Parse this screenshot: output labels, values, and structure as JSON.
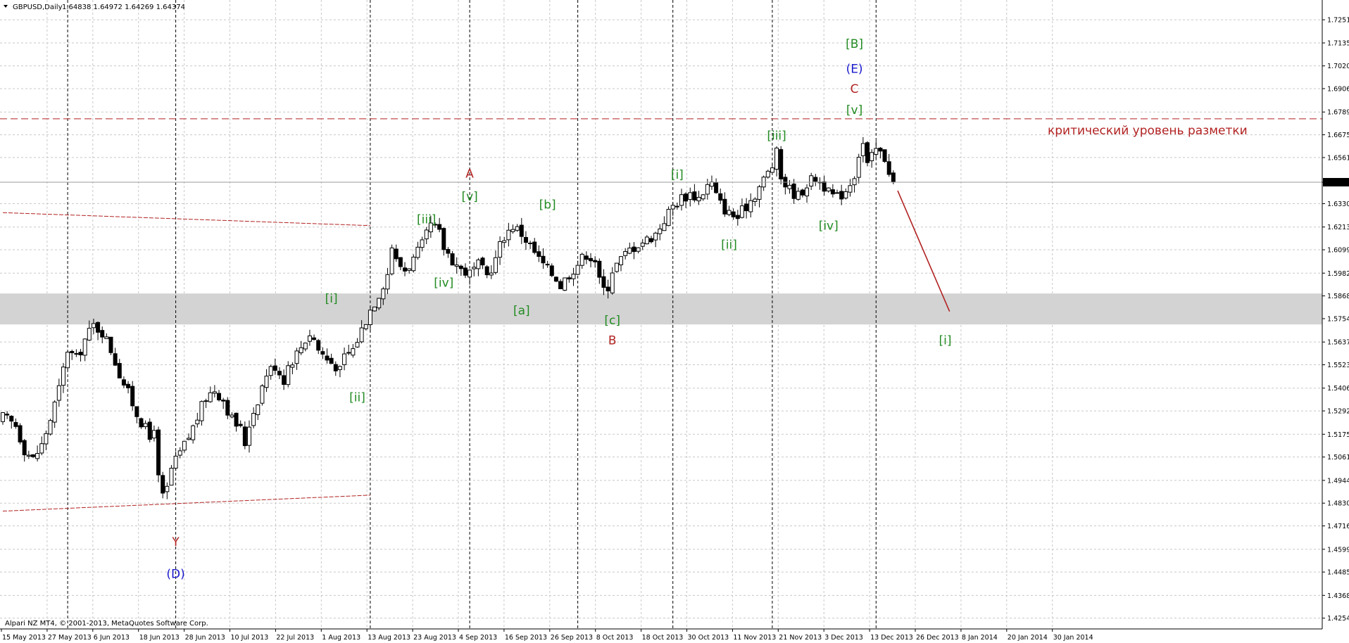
{
  "header": {
    "symbol": "GBPUSD,Daily",
    "ohlc": "1.64838 1.64972 1.64269 1.64374"
  },
  "footer": {
    "copyright": "Alpari NZ MT4, © 2001-2013, MetaQuotes Software Corp."
  },
  "current_price_label": "1.64374",
  "critical_level_text": "критический уровень разметки",
  "colors": {
    "green": "#228b22",
    "red": "#b22222",
    "blue": "#1a1acd",
    "zone": "#d3d3d3",
    "candle": "#000000"
  },
  "chart_data": {
    "type": "candlestick",
    "symbol": "GBPUSD",
    "timeframe": "Daily",
    "last_bar": {
      "open": 1.64838,
      "high": 1.64972,
      "low": 1.64269,
      "close": 1.64374
    },
    "ylim": [
      1.42,
      1.735
    ],
    "y_ticks": [
      "1.72510",
      "1.71350",
      "1.70200",
      "1.69060",
      "1.67890",
      "1.66750",
      "1.65610",
      "1.64374",
      "1.63300",
      "1.62130",
      "1.60990",
      "1.59820",
      "1.58680",
      "1.57540",
      "1.56370",
      "1.55230",
      "1.54060",
      "1.52920",
      "1.51750",
      "1.50610",
      "1.49440",
      "1.48300",
      "1.47160",
      "1.45990",
      "1.44850",
      "1.43680",
      "1.42540"
    ],
    "x_ticks": [
      "15 May 2013",
      "27 May 2013",
      "6 Jun 2013",
      "18 Jun 2013",
      "28 Jun 2013",
      "10 Jul 2013",
      "22 Jul 2013",
      "1 Aug 2013",
      "13 Aug 2013",
      "23 Aug 2013",
      "4 Sep 2013",
      "16 Sep 2013",
      "26 Sep 2013",
      "8 Oct 2013",
      "18 Oct 2013",
      "30 Oct 2013",
      "11 Nov 2013",
      "21 Nov 2013",
      "3 Dec 2013",
      "13 Dec 2013",
      "26 Dec 2013",
      "8 Jan 2014",
      "20 Jan 2014",
      "30 Jan 2014"
    ],
    "close_path": [
      [
        0,
        1.526
      ],
      [
        3,
        1.522
      ],
      [
        5,
        1.51
      ],
      [
        7,
        1.505
      ],
      [
        9,
        1.512
      ],
      [
        11,
        1.525
      ],
      [
        13,
        1.54
      ],
      [
        15,
        1.56
      ],
      [
        17,
        1.555
      ],
      [
        19,
        1.565
      ],
      [
        21,
        1.572
      ],
      [
        23,
        1.569
      ],
      [
        25,
        1.56
      ],
      [
        27,
        1.548
      ],
      [
        29,
        1.538
      ],
      [
        31,
        1.528
      ],
      [
        33,
        1.52
      ],
      [
        34,
        1.515
      ],
      [
        35,
        1.522
      ],
      [
        36,
        1.495
      ],
      [
        37,
        1.486
      ],
      [
        38,
        1.49
      ],
      [
        39,
        1.5
      ],
      [
        41,
        1.508
      ],
      [
        43,
        1.516
      ],
      [
        45,
        1.526
      ],
      [
        47,
        1.536
      ],
      [
        49,
        1.54
      ],
      [
        51,
        1.535
      ],
      [
        53,
        1.525
      ],
      [
        55,
        1.52
      ],
      [
        56,
        1.513
      ],
      [
        57,
        1.523
      ],
      [
        59,
        1.535
      ],
      [
        61,
        1.548
      ],
      [
        63,
        1.552
      ],
      [
        65,
        1.545
      ],
      [
        66,
        1.552
      ],
      [
        68,
        1.558
      ],
      [
        70,
        1.565
      ],
      [
        71,
        1.568
      ],
      [
        72,
        1.565
      ],
      [
        73,
        1.56
      ],
      [
        75,
        1.555
      ],
      [
        77,
        1.552
      ],
      [
        78,
        1.549
      ],
      [
        79,
        1.556
      ],
      [
        81,
        1.56
      ],
      [
        83,
        1.57
      ],
      [
        85,
        1.58
      ],
      [
        87,
        1.588
      ],
      [
        89,
        1.598
      ],
      [
        90,
        1.612
      ],
      [
        91,
        1.604
      ],
      [
        93,
        1.6
      ],
      [
        95,
        1.605
      ],
      [
        97,
        1.612
      ],
      [
        98,
        1.617
      ],
      [
        99,
        1.622
      ],
      [
        101,
        1.618
      ],
      [
        102,
        1.611
      ],
      [
        104,
        1.605
      ],
      [
        106,
        1.6
      ],
      [
        108,
        1.598
      ],
      [
        110,
        1.602
      ],
      [
        112,
        1.597
      ],
      [
        114,
        1.605
      ],
      [
        115,
        1.612
      ],
      [
        116,
        1.617
      ],
      [
        118,
        1.622
      ],
      [
        120,
        1.618
      ],
      [
        122,
        1.612
      ],
      [
        124,
        1.605
      ],
      [
        126,
        1.6
      ],
      [
        128,
        1.596
      ],
      [
        129,
        1.592
      ],
      [
        131,
        1.598
      ],
      [
        133,
        1.603
      ],
      [
        135,
        1.608
      ],
      [
        137,
        1.605
      ],
      [
        138,
        1.594
      ],
      [
        139,
        1.59
      ],
      [
        140,
        1.592
      ],
      [
        141,
        1.6
      ],
      [
        143,
        1.605
      ],
      [
        145,
        1.61
      ],
      [
        147,
        1.613
      ],
      [
        149,
        1.615
      ],
      [
        151,
        1.618
      ],
      [
        153,
        1.625
      ],
      [
        155,
        1.632
      ],
      [
        157,
        1.636
      ],
      [
        159,
        1.638
      ],
      [
        161,
        1.636
      ],
      [
        163,
        1.642
      ],
      [
        164,
        1.643
      ],
      [
        165,
        1.637
      ],
      [
        166,
        1.633
      ],
      [
        168,
        1.628
      ],
      [
        170,
        1.626
      ],
      [
        172,
        1.632
      ],
      [
        174,
        1.638
      ],
      [
        176,
        1.645
      ],
      [
        178,
        1.652
      ],
      [
        179,
        1.658
      ],
      [
        180,
        1.646
      ],
      [
        182,
        1.64
      ],
      [
        184,
        1.637
      ],
      [
        186,
        1.643
      ],
      [
        188,
        1.646
      ],
      [
        190,
        1.642
      ],
      [
        191,
        1.638
      ],
      [
        193,
        1.636
      ],
      [
        195,
        1.64
      ],
      [
        197,
        1.648
      ],
      [
        198,
        1.658
      ],
      [
        199,
        1.663
      ],
      [
        200,
        1.652
      ],
      [
        202,
        1.66
      ],
      [
        204,
        1.656
      ],
      [
        205,
        1.65
      ],
      [
        206,
        1.64374
      ]
    ],
    "horizontal_levels": [
      {
        "price": 1.6755,
        "style": "dashed",
        "color": "red"
      }
    ],
    "shaded_zone": {
      "from": 1.5725,
      "to": 1.588
    },
    "channel_lines": [
      {
        "from": [
          0,
          1.6285
        ],
        "to": [
          85,
          1.622
        ]
      },
      {
        "from": [
          0,
          1.479
        ],
        "to": [
          85,
          1.487
        ]
      }
    ],
    "projection_line": {
      "from": [
        207,
        1.6395
      ],
      "to": [
        219,
        1.579
      ]
    },
    "vertical_date_lines": [
      15,
      40,
      85,
      108,
      133,
      155,
      178,
      202
    ],
    "wave_labels": [
      {
        "text": "[i]",
        "bar": 76,
        "price": 1.5835,
        "color": "green"
      },
      {
        "text": "[ii]",
        "bar": 82,
        "price": 1.534,
        "color": "green"
      },
      {
        "text": "[iii]",
        "bar": 98,
        "price": 1.6232,
        "color": "green"
      },
      {
        "text": "[iv]",
        "bar": 102,
        "price": 1.5915,
        "color": "green"
      },
      {
        "text": "[v]",
        "bar": 108,
        "price": 1.6345,
        "color": "green"
      },
      {
        "text": "A",
        "bar": 108,
        "price": 1.646,
        "color": "red"
      },
      {
        "text": "[a]",
        "bar": 120,
        "price": 1.5775,
        "color": "green"
      },
      {
        "text": "[b]",
        "bar": 126,
        "price": 1.6305,
        "color": "green"
      },
      {
        "text": "[c]",
        "bar": 141,
        "price": 1.5725,
        "color": "green"
      },
      {
        "text": "B",
        "bar": 141,
        "price": 1.5625,
        "color": "red"
      },
      {
        "text": "[i]",
        "bar": 156,
        "price": 1.6455,
        "color": "green"
      },
      {
        "text": "[ii]",
        "bar": 168,
        "price": 1.6105,
        "color": "green"
      },
      {
        "text": "[iii]",
        "bar": 179,
        "price": 1.665,
        "color": "green"
      },
      {
        "text": "[iv]",
        "bar": 191,
        "price": 1.62,
        "color": "green"
      },
      {
        "text": "[v]",
        "bar": 197,
        "price": 1.678,
        "color": "green"
      },
      {
        "text": "C",
        "bar": 197,
        "price": 1.6885,
        "color": "red"
      },
      {
        "text": "(E)",
        "bar": 197,
        "price": 1.6985,
        "color": "blue"
      },
      {
        "text": "[B]",
        "bar": 197,
        "price": 1.711,
        "color": "green"
      },
      {
        "text": "[i]",
        "bar": 218,
        "price": 1.5625,
        "color": "green"
      },
      {
        "text": "Y",
        "bar": 40,
        "price": 1.4615,
        "color": "red"
      },
      {
        "text": "(D)",
        "bar": 40,
        "price": 1.4455,
        "color": "blue"
      }
    ]
  }
}
